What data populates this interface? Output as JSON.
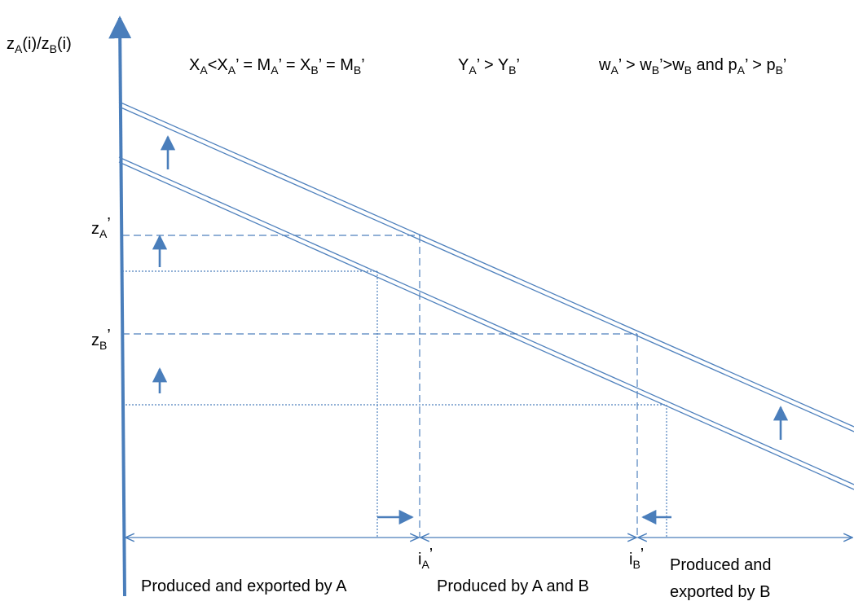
{
  "y_axis_label": {
    "z": "z",
    "sub_a": "A",
    "mid": "(i)/z",
    "sub_b": "B",
    "end": "(i)"
  },
  "equations": {
    "eq1": {
      "X1": "X",
      "A1": "A",
      "lt": "<X",
      "A2": "A",
      "p1": "’ = M",
      "A3": "A",
      "p2": "’ = X",
      "B1": "B",
      "p3": "’ = M",
      "B2": "B",
      "p4": "’"
    },
    "eq2": {
      "Y1": "Y",
      "A": "A",
      "mid": "’ > Y",
      "B": "B",
      "end": "’"
    },
    "eq3": {
      "w1": "w",
      "A": "A",
      "p1": "’ > w",
      "B1": "B",
      "p2": "’>w",
      "B2": "B",
      "p3": " and p",
      "A2": "A",
      "p4": "’ > p",
      "B3": "B",
      "p5": "’"
    }
  },
  "y_ticks": {
    "zA": {
      "base": "z",
      "sub": "A",
      "prime": "’"
    },
    "zB": {
      "base": "z",
      "sub": "B",
      "prime": "’"
    }
  },
  "x_ticks": {
    "iA": {
      "base": "i",
      "sub": "A",
      "prime": "’"
    },
    "iB": {
      "base": "i",
      "sub": "B",
      "prime": "’"
    }
  },
  "regions": {
    "left": "Produced and exported by A",
    "middle": "Produced by A and B",
    "right_line1": "Produced and",
    "right_line2": "exported by B"
  },
  "colors": {
    "line": "#4f81bd",
    "axis": "#4a7ebb",
    "text": "#000000"
  },
  "shift_arrows": [
    "up-arrow",
    "up-arrow",
    "up-arrow",
    "up-arrow",
    "right-arrow",
    "left-arrow"
  ]
}
